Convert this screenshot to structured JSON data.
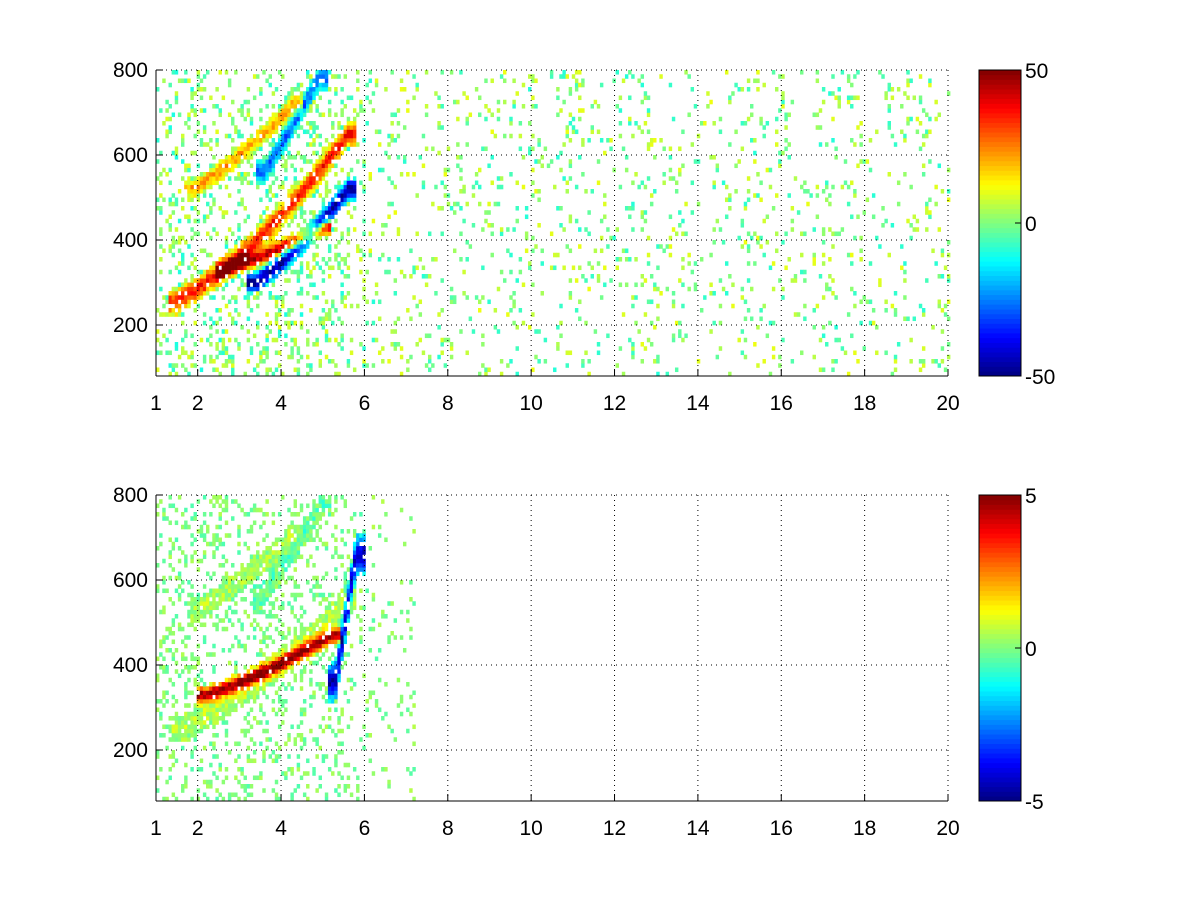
{
  "chart_data": [
    {
      "type": "heatmap",
      "title": "",
      "xlabel": "",
      "ylabel": "",
      "xlim": [
        1,
        20
      ],
      "ylim": [
        80,
        800
      ],
      "xticks": [
        1,
        2,
        4,
        6,
        8,
        10,
        12,
        14,
        16,
        18,
        20
      ],
      "yticks": [
        200,
        400,
        600,
        800
      ],
      "grid": true,
      "colorbar": {
        "colormap": "jet",
        "range": [
          -50,
          50
        ],
        "ticks": [
          -50,
          0,
          50
        ]
      },
      "features": [
        {
          "kind": "ridge",
          "x_start": 1.5,
          "x_end": 5.6,
          "y_start": 255,
          "y_end": 650,
          "curvature": 0.4,
          "width": 26,
          "amplitude": 36
        },
        {
          "kind": "ridge",
          "x_start": 2.6,
          "x_end": 5.0,
          "y_start": 330,
          "y_end": 430,
          "curvature": 0.3,
          "width": 18,
          "amplitude": 44
        },
        {
          "kind": "ridge",
          "x_start": 1.9,
          "x_end": 4.3,
          "y_start": 520,
          "y_end": 720,
          "curvature": 0.25,
          "width": 20,
          "amplitude": 22
        },
        {
          "kind": "ridge",
          "x_start": 3.4,
          "x_end": 5.6,
          "y_start": 300,
          "y_end": 520,
          "curvature": 0.3,
          "width": 22,
          "amplitude": -48
        },
        {
          "kind": "ridge",
          "x_start": 3.6,
          "x_end": 4.9,
          "y_start": 560,
          "y_end": 780,
          "curvature": 0.1,
          "width": 24,
          "amplitude": -28
        }
      ],
      "background": {
        "x_dense_until": 6,
        "x_sparse_end": 20,
        "sparse_amplitude": 10
      }
    },
    {
      "type": "heatmap",
      "title": "",
      "xlabel": "",
      "ylabel": "",
      "xlim": [
        1,
        20
      ],
      "ylim": [
        80,
        800
      ],
      "xticks": [
        1,
        2,
        4,
        6,
        8,
        10,
        12,
        14,
        16,
        18,
        20
      ],
      "yticks": [
        200,
        400,
        600,
        800
      ],
      "grid": true,
      "colorbar": {
        "colormap": "jet",
        "range": [
          -5,
          5
        ],
        "ticks": [
          -5,
          0,
          5
        ]
      },
      "features": [
        {
          "kind": "ridge",
          "x_start": 1.6,
          "x_end": 5.6,
          "y_start": 250,
          "y_end": 560,
          "curvature": 0.4,
          "width": 26,
          "amplitude": 0.6
        },
        {
          "kind": "ridge",
          "x_start": 2.2,
          "x_end": 5.2,
          "y_start": 330,
          "y_end": 470,
          "curvature": 0.3,
          "width": 18,
          "amplitude": 4.8
        },
        {
          "kind": "ridge",
          "x_start": 2.0,
          "x_end": 4.2,
          "y_start": 530,
          "y_end": 700,
          "curvature": 0.25,
          "width": 22,
          "amplitude": 0.5
        },
        {
          "kind": "ridge",
          "x_start": 3.5,
          "x_end": 5.0,
          "y_start": 560,
          "y_end": 780,
          "curvature": 0.1,
          "width": 24,
          "amplitude": -0.4
        },
        {
          "kind": "ridge",
          "x_start": 5.3,
          "x_end": 5.8,
          "y_start": 360,
          "y_end": 660,
          "curvature": 0.0,
          "width": 40,
          "amplitude": -4.6
        }
      ],
      "background": {
        "x_dense_until": 6,
        "x_sparse_end": 7.2,
        "sparse_amplitude": 0.5
      }
    }
  ]
}
